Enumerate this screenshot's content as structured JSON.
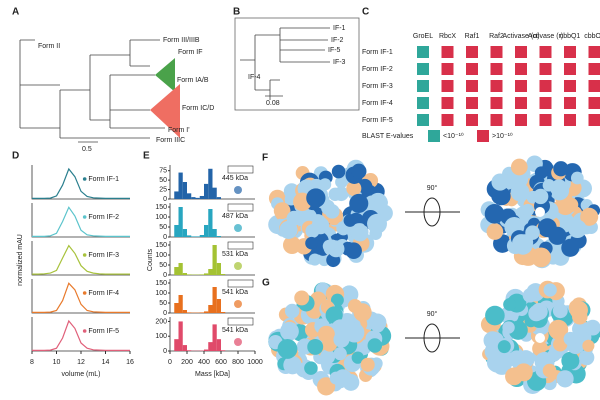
{
  "panel_labels": [
    "A",
    "B",
    "C",
    "D",
    "E",
    "F",
    "G"
  ],
  "tree": {
    "labels": [
      "Form II",
      "Form III/IIIB",
      "Form IF",
      "Form IA/B",
      "Form IC/D",
      "Form I'",
      "Form IIIC"
    ],
    "scale": "0.5"
  },
  "subtree": {
    "labels": [
      "IF-1",
      "IF-2",
      "IF-5",
      "IF-3",
      "IF-4"
    ],
    "scale": "0.08"
  },
  "table": {
    "columns": [
      "GroEL",
      "RbcX",
      "Raf1",
      "Raf2",
      "Activase (α)",
      "Activase (r)",
      "cbbQ1",
      "cbbO1"
    ],
    "rows": [
      "Form IF-1",
      "Form IF-2",
      "Form IF-3",
      "Form IF-4",
      "Form IF-5"
    ],
    "legend": {
      "title": "BLAST E-values",
      "low": "<10⁻¹⁰",
      "high": ">10⁻¹⁰"
    }
  },
  "structures": {
    "F": {
      "angle": "90°"
    },
    "G": {
      "angle": "90°"
    }
  },
  "chart_data": [
    {
      "type": "line",
      "xlabel": "volume (mL)",
      "ylabel": "normalized mAU",
      "xlim": [
        8,
        16
      ],
      "xticks": [
        8,
        10,
        12,
        14,
        16
      ],
      "ylim": [
        0,
        1.1
      ],
      "x": [
        8,
        8.5,
        9,
        9.5,
        10,
        10.5,
        11,
        11.5,
        12,
        12.5,
        13,
        13.5,
        14,
        14.5,
        15,
        15.5,
        16
      ],
      "series": [
        {
          "name": "Form IF-1",
          "color": "#2a7f8e",
          "values": [
            0.02,
            0.02,
            0.02,
            0.03,
            0.1,
            0.45,
            0.97,
            0.72,
            0.25,
            0.08,
            0.04,
            0.03,
            0.02,
            0.02,
            0.02,
            0.02,
            0.02
          ]
        },
        {
          "name": "Form IF-2",
          "color": "#5bc4cc",
          "values": [
            0.02,
            0.02,
            0.02,
            0.04,
            0.12,
            0.5,
            0.96,
            0.68,
            0.22,
            0.07,
            0.04,
            0.03,
            0.02,
            0.02,
            0.02,
            0.02,
            0.02
          ]
        },
        {
          "name": "Form IF-3",
          "color": "#a8c23c",
          "values": [
            0.03,
            0.03,
            0.04,
            0.06,
            0.15,
            0.55,
            0.95,
            0.7,
            0.3,
            0.12,
            0.06,
            0.04,
            0.03,
            0.03,
            0.03,
            0.03,
            0.03
          ]
        },
        {
          "name": "Form IF-4",
          "color": "#e87a2c",
          "values": [
            0.02,
            0.02,
            0.02,
            0.03,
            0.08,
            0.4,
            0.96,
            0.75,
            0.28,
            0.08,
            0.04,
            0.03,
            0.02,
            0.02,
            0.02,
            0.02,
            0.02
          ]
        },
        {
          "name": "Form IF-5",
          "color": "#e0607a",
          "values": [
            0.02,
            0.02,
            0.02,
            0.03,
            0.09,
            0.42,
            0.97,
            0.73,
            0.26,
            0.09,
            0.04,
            0.03,
            0.02,
            0.02,
            0.02,
            0.02,
            0.02
          ]
        }
      ]
    },
    {
      "type": "histogram",
      "xlabel": "Mass [kDa]",
      "ylabel": "Counts",
      "xlim": [
        0,
        1000
      ],
      "xticks": [
        0,
        200,
        400,
        600,
        800,
        1000
      ],
      "bins": [
        0,
        50,
        100,
        150,
        200,
        250,
        300,
        350,
        400,
        450,
        500,
        550,
        600,
        650,
        700,
        750,
        800,
        850,
        900,
        950,
        1000
      ],
      "series": [
        {
          "name": "445 kDa",
          "color": "#2364a8",
          "ylim": [
            0,
            90
          ],
          "yticks": [
            0,
            25,
            50,
            75
          ],
          "values": [
            0,
            20,
            70,
            45,
            15,
            5,
            3,
            8,
            40,
            80,
            30,
            5,
            0,
            0,
            0,
            0,
            0,
            0,
            0,
            0
          ]
        },
        {
          "name": "487 kDa",
          "color": "#28a6c0",
          "ylim": [
            0,
            170
          ],
          "yticks": [
            0,
            50,
            100,
            150
          ],
          "values": [
            0,
            60,
            150,
            40,
            8,
            3,
            3,
            10,
            60,
            140,
            40,
            5,
            0,
            0,
            0,
            0,
            0,
            0,
            0,
            0
          ]
        },
        {
          "name": "531 kDa",
          "color": "#a4c233",
          "ylim": [
            0,
            170
          ],
          "yticks": [
            0,
            50,
            100,
            150
          ],
          "values": [
            0,
            40,
            60,
            10,
            3,
            2,
            2,
            3,
            8,
            30,
            150,
            60,
            5,
            0,
            0,
            0,
            0,
            0,
            0,
            0
          ]
        },
        {
          "name": "541 kDa",
          "color": "#e8701e",
          "ylim": [
            0,
            170
          ],
          "yticks": [
            0,
            50,
            100,
            150
          ],
          "values": [
            0,
            50,
            90,
            15,
            3,
            2,
            2,
            3,
            8,
            40,
            130,
            70,
            5,
            0,
            0,
            0,
            0,
            0,
            0,
            0
          ]
        },
        {
          "name": "541 kDa",
          "color": "#e04a6a",
          "ylim": [
            0,
            230
          ],
          "yticks": [
            0,
            100,
            200
          ],
          "values": [
            0,
            80,
            200,
            40,
            5,
            2,
            2,
            3,
            10,
            60,
            180,
            80,
            5,
            0,
            0,
            0,
            0,
            0,
            0,
            0
          ]
        }
      ]
    }
  ]
}
